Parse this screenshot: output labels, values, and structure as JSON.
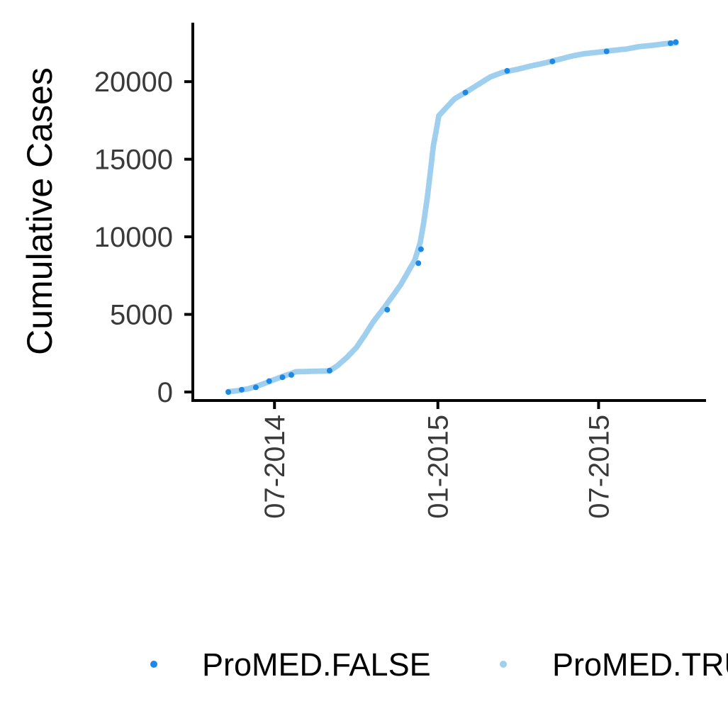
{
  "chart_data": {
    "type": "scatter",
    "title": "",
    "xlabel": "",
    "ylabel": "Cumulative Cases",
    "x_type": "date",
    "x_ticks": [
      {
        "date": "2014-07-01",
        "label": "07-2014"
      },
      {
        "date": "2015-01-01",
        "label": "01-2015"
      },
      {
        "date": "2015-07-01",
        "label": "07-2015"
      }
    ],
    "y_ticks": [
      0,
      5000,
      10000,
      15000,
      20000
    ],
    "y_tick_labels": [
      "0",
      "5000",
      "10000",
      "15000",
      "20000"
    ],
    "xlim": [
      "2014-03-31",
      "2015-10-30"
    ],
    "ylim": [
      -550,
      23800
    ],
    "grid": false,
    "legend_position": "bottom",
    "colors": {
      "ProMED.FALSE": "#1e88e5",
      "ProMED.TRUE": "#9ecfee"
    },
    "series": [
      {
        "name": "ProMED.TRUE",
        "points": [
          [
            "2014-05-10",
            20
          ],
          [
            "2014-05-20",
            80
          ],
          [
            "2014-06-01",
            200
          ],
          [
            "2014-06-10",
            350
          ],
          [
            "2014-06-20",
            560
          ],
          [
            "2014-07-01",
            800
          ],
          [
            "2014-07-10",
            1000
          ],
          [
            "2014-07-18",
            1150
          ],
          [
            "2014-07-25",
            1300
          ],
          [
            "2014-08-05",
            1320
          ],
          [
            "2014-08-20",
            1340
          ],
          [
            "2014-09-01",
            1360
          ],
          [
            "2014-09-10",
            1700
          ],
          [
            "2014-09-20",
            2200
          ],
          [
            "2014-10-01",
            2850
          ],
          [
            "2014-10-10",
            3600
          ],
          [
            "2014-10-20",
            4500
          ],
          [
            "2014-11-01",
            5400
          ],
          [
            "2014-11-10",
            6100
          ],
          [
            "2014-11-20",
            6900
          ],
          [
            "2014-11-28",
            7700
          ],
          [
            "2014-12-06",
            8500
          ],
          [
            "2014-12-12",
            9600
          ],
          [
            "2014-12-16",
            10900
          ],
          [
            "2014-12-20",
            12500
          ],
          [
            "2014-12-24",
            14400
          ],
          [
            "2014-12-27",
            15900
          ],
          [
            "2014-12-30",
            16800
          ],
          [
            "2015-01-02",
            17800
          ],
          [
            "2015-01-10",
            18300
          ],
          [
            "2015-01-20",
            18900
          ],
          [
            "2015-02-01",
            19300
          ],
          [
            "2015-02-15",
            19800
          ],
          [
            "2015-03-01",
            20300
          ],
          [
            "2015-03-15",
            20600
          ],
          [
            "2015-04-01",
            20800
          ],
          [
            "2015-04-15",
            21000
          ],
          [
            "2015-05-01",
            21200
          ],
          [
            "2015-05-15",
            21400
          ],
          [
            "2015-06-01",
            21650
          ],
          [
            "2015-06-15",
            21800
          ],
          [
            "2015-07-01",
            21900
          ],
          [
            "2015-07-15",
            22000
          ],
          [
            "2015-08-01",
            22100
          ],
          [
            "2015-08-15",
            22250
          ],
          [
            "2015-09-01",
            22350
          ],
          [
            "2015-09-15",
            22450
          ],
          [
            "2015-09-26",
            22500
          ]
        ]
      },
      {
        "name": "ProMED.FALSE",
        "points": [
          [
            "2014-05-10",
            0
          ],
          [
            "2014-05-25",
            150
          ],
          [
            "2014-06-10",
            300
          ],
          [
            "2014-06-25",
            700
          ],
          [
            "2014-07-10",
            950
          ],
          [
            "2014-07-20",
            1100
          ],
          [
            "2014-09-01",
            1380
          ],
          [
            "2014-11-05",
            5300
          ],
          [
            "2014-12-10",
            8300
          ],
          [
            "2014-12-13",
            9200
          ],
          [
            "2015-02-01",
            19300
          ],
          [
            "2015-03-20",
            20700
          ],
          [
            "2015-05-10",
            21300
          ],
          [
            "2015-07-10",
            21950
          ],
          [
            "2015-09-20",
            22480
          ],
          [
            "2015-09-26",
            22550
          ]
        ]
      }
    ]
  },
  "legend": {
    "items": [
      {
        "label": "ProMED.FALSE",
        "color": "#1e88e5"
      },
      {
        "label": "ProMED.TRUE",
        "color": "#9ecfee"
      }
    ]
  }
}
